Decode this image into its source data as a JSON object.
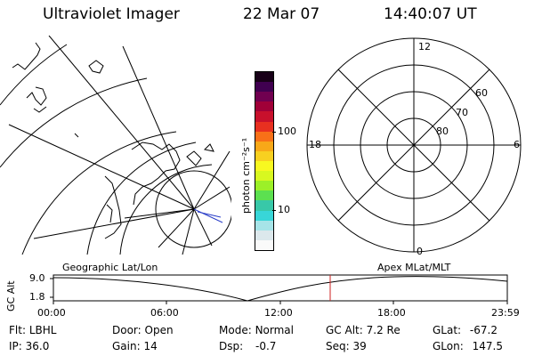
{
  "header": {
    "title": "Ultraviolet Imager",
    "date": "22 Mar 07",
    "time": "14:40:07 UT"
  },
  "colorbar": {
    "unit_label": "photon cm⁻²s⁻¹",
    "ticks": [
      "100",
      "10"
    ],
    "colors": [
      "#fafafa",
      "#dce8ec",
      "#a6e4e8",
      "#38d6d8",
      "#38c8a8",
      "#5ce050",
      "#9cf028",
      "#d8f820",
      "#f8f820",
      "#f8d020",
      "#f8a818",
      "#f87018",
      "#e83020",
      "#c8102c",
      "#a00038",
      "#700050",
      "#400050",
      "#180018"
    ]
  },
  "geo_map": {
    "label": "Geographic Lat/Lon"
  },
  "polar_plot": {
    "label": "Apex  MLat/MLT",
    "mlt_labels": [
      "12",
      "18",
      "6",
      "0"
    ],
    "lat_labels": [
      "60",
      "70",
      "80"
    ]
  },
  "orbit_plot": {
    "y_axis_label": "GC Alt",
    "y_ticks": [
      "9.0",
      "1.8"
    ],
    "x_ticks": [
      "00:00",
      "06:00",
      "12:00",
      "18:00",
      "23:59"
    ],
    "current_time_color": "#cc2222"
  },
  "info": {
    "filter_label": "Flt:",
    "filter_value": "LBHL",
    "ip_label": "IP:",
    "ip_value": "36.0",
    "door_label": "Door:",
    "door_value": "Open",
    "gain_label": "Gain:",
    "gain_value": "14",
    "mode_label": "Mode:",
    "mode_value": "Normal",
    "dsp_label": "Dsp:",
    "dsp_value": "-0.7",
    "gcalt_label": "GC Alt:",
    "gcalt_value": "7.2 Re",
    "seq_label": "Seq:",
    "seq_value": "39",
    "glat_label": "GLat:",
    "glat_value": "-67.2",
    "glon_label": "GLon:",
    "glon_value": "147.5"
  }
}
